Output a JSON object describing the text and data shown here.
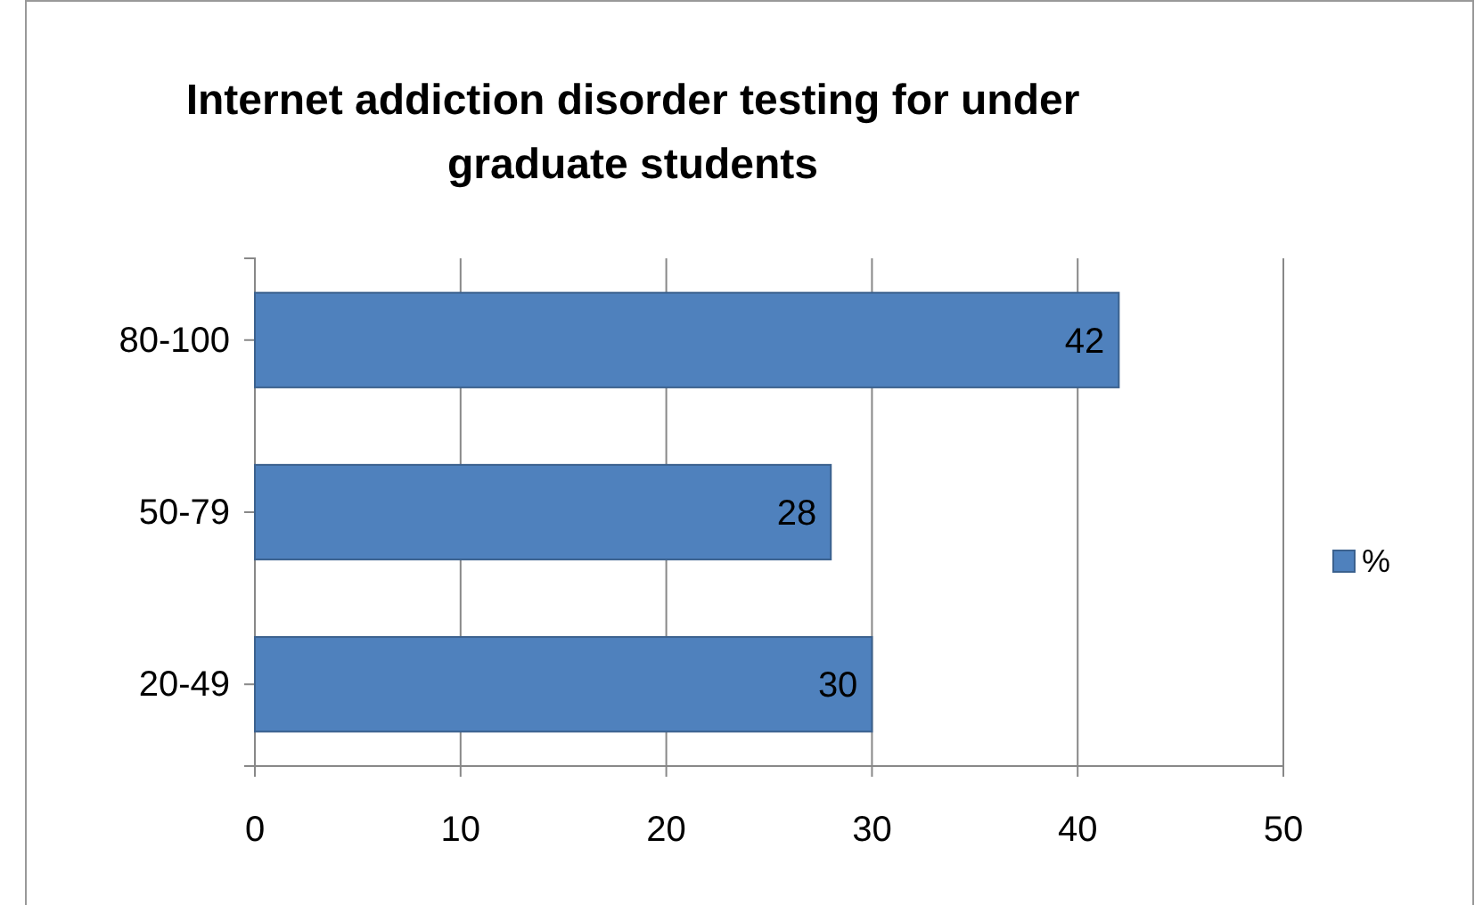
{
  "chart_data": {
    "type": "bar",
    "title": "Internet addiction disorder testing for under graduate students",
    "orientation": "horizontal",
    "categories": [
      "80-100",
      "50-79",
      "20-49"
    ],
    "series": [
      {
        "name": "%",
        "color": "#4f81bd",
        "values": [
          42,
          28,
          30
        ]
      }
    ],
    "xlim": [
      0,
      50
    ],
    "xticks": [
      0,
      10,
      20,
      30,
      40,
      50
    ],
    "grid": "x",
    "legend": "right",
    "data_labels": true
  }
}
